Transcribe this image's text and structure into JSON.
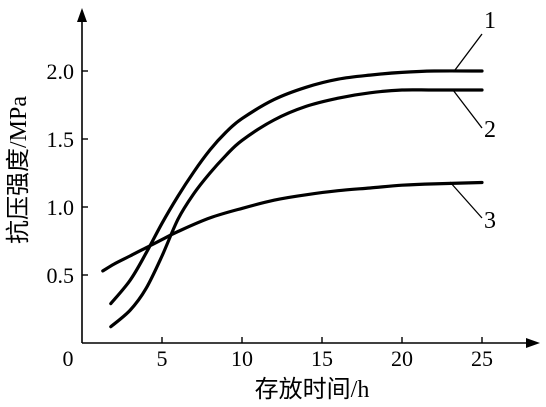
{
  "chart_data": {
    "type": "line",
    "xlabel": "存放时间/h",
    "ylabel": "抗压强度/MPa",
    "origin_label": "0",
    "xlim": [
      0,
      28
    ],
    "ylim": [
      0,
      2.4
    ],
    "x_ticks": [
      {
        "value": 5,
        "label": "5"
      },
      {
        "value": 10,
        "label": "10"
      },
      {
        "value": 15,
        "label": "15"
      },
      {
        "value": 20,
        "label": "20"
      },
      {
        "value": 25,
        "label": "25"
      }
    ],
    "y_ticks": [
      {
        "value": 0.5,
        "label": "0.5"
      },
      {
        "value": 1.0,
        "label": "1.0"
      },
      {
        "value": 1.5,
        "label": "1.5"
      },
      {
        "value": 2.0,
        "label": "2.0"
      }
    ],
    "grid": false,
    "legend": "callout labels at right end of each curve",
    "series": [
      {
        "label": "1",
        "color": "#000000",
        "x": [
          1.8,
          3,
          4,
          5,
          6,
          7,
          8,
          9,
          10,
          12,
          14,
          16,
          18,
          20,
          22,
          25
        ],
        "y": [
          0.29,
          0.46,
          0.66,
          0.88,
          1.08,
          1.26,
          1.42,
          1.55,
          1.65,
          1.79,
          1.88,
          1.94,
          1.97,
          1.99,
          2.0,
          2.0
        ]
      },
      {
        "label": "2",
        "color": "#000000",
        "x": [
          1.8,
          3,
          4,
          5,
          6,
          7,
          8,
          9,
          10,
          12,
          14,
          16,
          18,
          20,
          22,
          25
        ],
        "y": [
          0.12,
          0.24,
          0.4,
          0.64,
          0.91,
          1.1,
          1.25,
          1.38,
          1.49,
          1.64,
          1.74,
          1.8,
          1.84,
          1.86,
          1.86,
          1.86
        ]
      },
      {
        "label": "3",
        "color": "#000000",
        "x": [
          1.3,
          2,
          3,
          4,
          5,
          6,
          8,
          10,
          12,
          14,
          16,
          18,
          20,
          22,
          25
        ],
        "y": [
          0.53,
          0.58,
          0.64,
          0.7,
          0.76,
          0.82,
          0.92,
          0.99,
          1.05,
          1.09,
          1.12,
          1.14,
          1.16,
          1.17,
          1.18
        ]
      }
    ]
  }
}
